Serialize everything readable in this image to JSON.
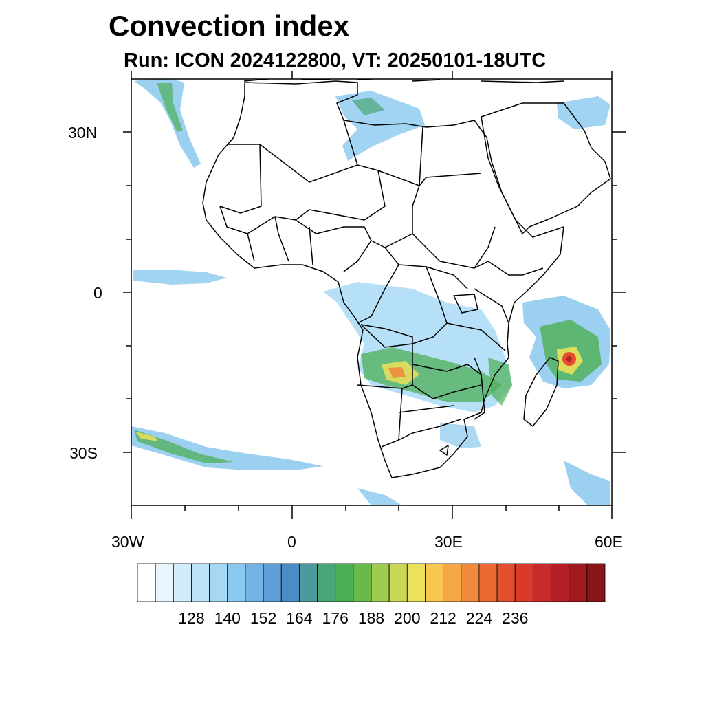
{
  "title": "Convection index",
  "subtitle": "Run: ICON 2024122800,  VT: 20250101-18UTC",
  "axes": {
    "lat_ticks": [
      "30N",
      "0",
      "30S"
    ],
    "lon_ticks": [
      "30W",
      "0",
      "30E",
      "60E"
    ],
    "lon_range": [
      -30,
      60
    ],
    "lat_range": [
      -40,
      40
    ]
  },
  "colorbar": {
    "labels": [
      "128",
      "140",
      "152",
      "164",
      "176",
      "188",
      "200",
      "212",
      "224",
      "236"
    ],
    "colors": [
      "#ffffff",
      "#e9f5fd",
      "#d3ecfb",
      "#bde3f9",
      "#a4d8f5",
      "#8ac8ef",
      "#74b4e5",
      "#5f9fd8",
      "#4c8cc4",
      "#4d9a9e",
      "#4aa676",
      "#4daf55",
      "#6aba4a",
      "#9ecb50",
      "#c9d757",
      "#ebe15a",
      "#f7c750",
      "#f5a845",
      "#f08a3c",
      "#eb6a34",
      "#e24f2e",
      "#d93a2b",
      "#c92a2a",
      "#b51f25",
      "#a01a20",
      "#8a1518"
    ]
  },
  "colors": {
    "coast": "#000000",
    "background": "#ffffff"
  }
}
